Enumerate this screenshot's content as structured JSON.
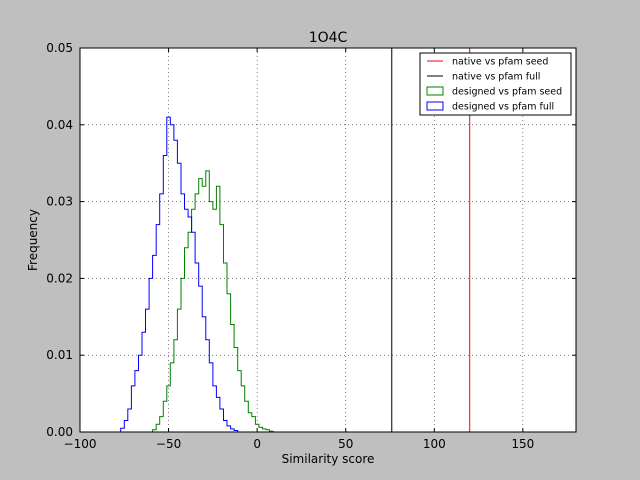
{
  "chart_data": {
    "type": "histogram",
    "title": "1O4C",
    "xlabel": "Similarity score",
    "ylabel": "Frequency",
    "xlim": [
      -100,
      180
    ],
    "ylim": [
      0,
      0.05
    ],
    "xticks": [
      -100,
      -50,
      0,
      50,
      100,
      150
    ],
    "xtick_labels": [
      "−100",
      "−50",
      "0",
      "50",
      "100",
      "150"
    ],
    "yticks": [
      0.0,
      0.01,
      0.02,
      0.03,
      0.04,
      0.05
    ],
    "ytick_labels": [
      "0.00",
      "0.01",
      "0.02",
      "0.03",
      "0.04",
      "0.05"
    ],
    "grid": true,
    "legend_position": "top-right",
    "vlines": [
      {
        "name": "native vs pfam seed",
        "x": 120,
        "color": "#ff0000"
      },
      {
        "name": "native vs pfam full",
        "x": 76,
        "color": "#000000"
      }
    ],
    "series": [
      {
        "name": "designed vs pfam seed",
        "color": "#008000",
        "histtype": "step",
        "x": [
          -58,
          -56,
          -54,
          -52,
          -50,
          -48,
          -46,
          -44,
          -42,
          -40,
          -38,
          -36,
          -34,
          -32,
          -30,
          -28,
          -26,
          -24,
          -22,
          -20,
          -18,
          -16,
          -14,
          -12,
          -10,
          -8,
          -6,
          -4,
          -2,
          0,
          2,
          4,
          6,
          8
        ],
        "y": [
          0.0003,
          0.001,
          0.002,
          0.004,
          0.006,
          0.009,
          0.012,
          0.016,
          0.02,
          0.024,
          0.026,
          0.029,
          0.031,
          0.033,
          0.032,
          0.034,
          0.03,
          0.029,
          0.032,
          0.027,
          0.022,
          0.018,
          0.014,
          0.011,
          0.008,
          0.006,
          0.004,
          0.0025,
          0.002,
          0.001,
          0.0006,
          0.0004,
          0.0003,
          0.0001
        ]
      },
      {
        "name": "designed vs pfam full",
        "color": "#0000ff",
        "histtype": "step",
        "x": [
          -76,
          -74,
          -72,
          -70,
          -68,
          -66,
          -64,
          -62,
          -60,
          -58,
          -56,
          -54,
          -52,
          -50,
          -48,
          -46,
          -44,
          -42,
          -40,
          -38,
          -36,
          -34,
          -32,
          -30,
          -28,
          -26,
          -24,
          -22,
          -20,
          -18,
          -16,
          -14,
          -12
        ],
        "y": [
          0.0005,
          0.0015,
          0.003,
          0.006,
          0.008,
          0.01,
          0.013,
          0.016,
          0.02,
          0.023,
          0.027,
          0.031,
          0.036,
          0.041,
          0.04,
          0.038,
          0.035,
          0.031,
          0.029,
          0.028,
          0.026,
          0.022,
          0.019,
          0.015,
          0.012,
          0.009,
          0.006,
          0.0045,
          0.003,
          0.0015,
          0.0008,
          0.0004,
          0.0002
        ]
      }
    ]
  }
}
